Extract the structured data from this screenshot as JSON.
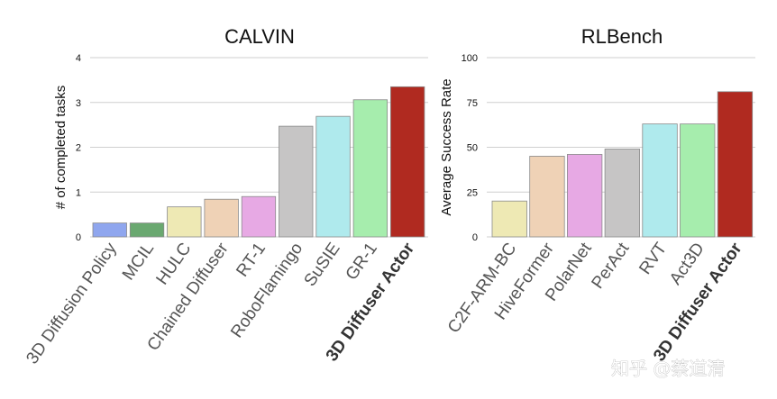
{
  "chart_data": [
    {
      "type": "bar",
      "title": "CALVIN",
      "xlabel": "",
      "ylabel": "# of completed tasks",
      "ylim": [
        0,
        4
      ],
      "yticks": [
        0,
        1,
        2,
        3,
        4
      ],
      "grid": true,
      "categories": [
        "3D Diffusion Policy",
        "MCIL",
        "HULC",
        "Chained Diffuser",
        "RT-1",
        "RoboFlamingo",
        "SuSIE",
        "GR-1",
        "3D Diffuser Actor"
      ],
      "values": [
        0.31,
        0.31,
        0.67,
        0.84,
        0.9,
        2.47,
        2.69,
        3.06,
        3.35
      ],
      "colors": [
        "#8fa6ee",
        "#6aa870",
        "#eee9b4",
        "#efd2b6",
        "#e7a9e4",
        "#c6c5c5",
        "#afeaed",
        "#a6edad",
        "#b02a20"
      ],
      "bold_categories": [
        "3D Diffuser Actor"
      ]
    },
    {
      "type": "bar",
      "title": "RLBench",
      "xlabel": "",
      "ylabel": "Average Success Rate",
      "ylim": [
        0,
        100
      ],
      "yticks": [
        0,
        25,
        50,
        75,
        100
      ],
      "grid": true,
      "categories": [
        "C2F-ARM-BC",
        "HiveFormer",
        "PolarNet",
        "PerAct",
        "RVT",
        "Act3D",
        "3D Diffuser Actor"
      ],
      "values": [
        20,
        45,
        46,
        49,
        63,
        63,
        81
      ],
      "colors": [
        "#eee9b4",
        "#efd2b6",
        "#e7a9e4",
        "#c6c5c5",
        "#afeaed",
        "#a6edad",
        "#b02a20"
      ],
      "bold_categories": [
        "3D Diffuser Actor"
      ]
    }
  ],
  "watermark": "知乎 @蔡道清"
}
